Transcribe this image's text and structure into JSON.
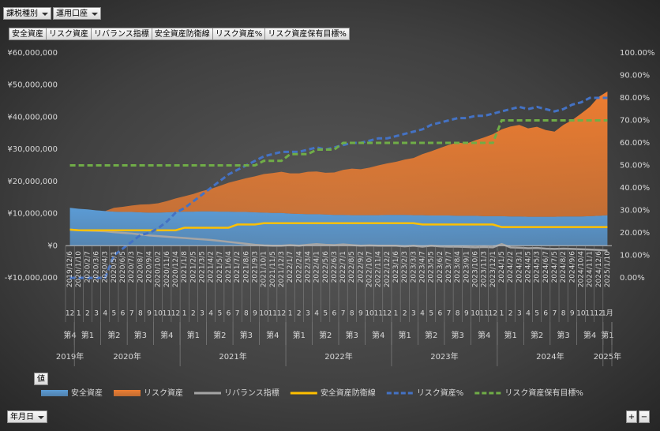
{
  "filters": [
    "課税種別",
    "運用口座"
  ],
  "values_label": "値",
  "axis_button": "年月日",
  "zoom_in": "+",
  "zoom_out": "−",
  "chart_data": {
    "type": "combo",
    "dates": [
      "2019/12/6",
      "2020/1/10",
      "2020/2/7",
      "2020/3/6",
      "2020/4/3",
      "2020/5/1",
      "2020/6/5",
      "2020/7/3",
      "2020/8/7",
      "2020/9/4",
      "2020/10/2",
      "2020/11/6",
      "2020/12/4",
      "2021/1/8",
      "2021/2/5",
      "2021/3/5",
      "2021/4/2",
      "2021/5/7",
      "2021/6/4",
      "2021/7/2",
      "2021/8/6",
      "2021/9/3",
      "2021/10/1",
      "2021/11/5",
      "2021/12/3",
      "2022/1/7",
      "2022/2/4",
      "2022/3/4",
      "2022/4/1",
      "2022/5/6",
      "2022/6/3",
      "2022/7/1",
      "2022/8/5",
      "2022/9/2",
      "2022/10/7",
      "2022/11/4",
      "2022/12/2",
      "2023/1/6",
      "2023/2/3",
      "2023/3/3",
      "2023/4/7",
      "2023/5/5",
      "2023/6/2",
      "2023/7/7",
      "2023/8/4",
      "2023/9/1",
      "2023/10/6",
      "2023/11/3",
      "2023/12/1",
      "2024/1/5",
      "2024/2/2",
      "2024/3/1",
      "2024/4/5",
      "2024/5/3",
      "2024/6/7",
      "2024/7/5",
      "2024/8/2",
      "2024/9/6",
      "2024/10/4",
      "2024/11/1",
      "2024/12/6",
      "2025/1/10"
    ],
    "categories": [
      "12",
      "1",
      "2",
      "3",
      "4",
      "5",
      "6",
      "7",
      "8",
      "9",
      "10",
      "11",
      "12",
      "1",
      "2",
      "3",
      "4",
      "5",
      "6",
      "7",
      "8",
      "9",
      "10",
      "11",
      "12",
      "1",
      "2",
      "3",
      "4",
      "5",
      "6",
      "7",
      "8",
      "9",
      "10",
      "11",
      "12",
      "1",
      "2",
      "3",
      "4",
      "5",
      "6",
      "7",
      "8",
      "9",
      "10",
      "11",
      "12",
      "1",
      "2",
      "3",
      "4",
      "5",
      "6",
      "7",
      "8",
      "9",
      "10",
      "11",
      "12",
      "1月"
    ],
    "quarters": [
      "第4",
      "第1",
      "第1",
      "第1",
      "第2",
      "第2",
      "第2",
      "第3",
      "第3",
      "第3",
      "第4",
      "第4",
      "第4",
      "第1",
      "第1",
      "第1",
      "第2",
      "第2",
      "第2",
      "第3",
      "第3",
      "第3",
      "第4",
      "第4",
      "第4",
      "第1",
      "第1",
      "第1",
      "第2",
      "第2",
      "第2",
      "第3",
      "第3",
      "第3",
      "第4",
      "第4",
      "第4",
      "第1",
      "第1",
      "第1",
      "第2",
      "第2",
      "第2",
      "第3",
      "第3",
      "第3",
      "第4",
      "第4",
      "第4",
      "第1",
      "第1",
      "第1",
      "第2",
      "第2",
      "第2",
      "第3",
      "第3",
      "第3",
      "第4",
      "第4",
      "第4",
      "第1"
    ],
    "years": [
      "2019年",
      "2020年",
      "2020年",
      "2020年",
      "2020年",
      "2020年",
      "2020年",
      "2020年",
      "2020年",
      "2020年",
      "2020年",
      "2020年",
      "2020年",
      "2021年",
      "2021年",
      "2021年",
      "2021年",
      "2021年",
      "2021年",
      "2021年",
      "2021年",
      "2021年",
      "2021年",
      "2021年",
      "2021年",
      "2022年",
      "2022年",
      "2022年",
      "2022年",
      "2022年",
      "2022年",
      "2022年",
      "2022年",
      "2022年",
      "2022年",
      "2022年",
      "2022年",
      "2023年",
      "2023年",
      "2023年",
      "2023年",
      "2023年",
      "2023年",
      "2023年",
      "2023年",
      "2023年",
      "2023年",
      "2023年",
      "2023年",
      "2024年",
      "2024年",
      "2024年",
      "2024年",
      "2024年",
      "2024年",
      "2024年",
      "2024年",
      "2024年",
      "2024年",
      "2024年",
      "2024年",
      "2025年"
    ],
    "series": [
      {
        "name": "安全資産",
        "type": "area",
        "color": "#5b9bd5",
        "values": [
          11800000,
          11500000,
          11300000,
          11000000,
          10800000,
          10600000,
          10500000,
          10500000,
          10400000,
          10300000,
          10300000,
          10400000,
          10500000,
          10600000,
          10600000,
          10700000,
          10700000,
          10600000,
          10600000,
          10500000,
          10500000,
          10400000,
          10300000,
          10200000,
          10200000,
          10000000,
          9900000,
          9800000,
          9800000,
          9700000,
          9600000,
          9600000,
          9500000,
          9500000,
          9500000,
          9500000,
          9600000,
          9600000,
          9600000,
          9500000,
          9500000,
          9400000,
          9400000,
          9400000,
          9300000,
          9300000,
          9300000,
          9200000,
          9200000,
          9200000,
          9100000,
          9100000,
          9000000,
          9000000,
          9000000,
          9000000,
          9100000,
          9100000,
          9100000,
          9200000,
          9300000,
          9500000
        ]
      },
      {
        "name": "リスク資産",
        "type": "area",
        "color": "#ed7d31",
        "values": [
          0,
          0,
          0,
          0,
          0,
          1200000,
          1600000,
          2000000,
          2400000,
          2600000,
          2900000,
          3500000,
          4200000,
          4800000,
          5500000,
          6300000,
          7000000,
          8000000,
          9000000,
          9800000,
          10500000,
          11200000,
          12000000,
          12400000,
          12800000,
          12500000,
          12600000,
          13200000,
          13300000,
          13000000,
          13200000,
          14000000,
          14500000,
          14300000,
          14800000,
          15500000,
          16000000,
          16500000,
          17200000,
          17800000,
          19000000,
          20000000,
          21000000,
          22000000,
          22800000,
          22500000,
          23500000,
          24500000,
          25500000,
          27000000,
          28000000,
          28500000,
          27500000,
          28000000,
          27000000,
          26500000,
          28500000,
          30000000,
          32000000,
          34000000,
          37000000,
          38500000
        ]
      },
      {
        "name": "リバランス指標",
        "type": "line",
        "color": "#a5a5a5",
        "values": [
          5000000,
          4800000,
          4700000,
          4600000,
          4500000,
          4200000,
          4000000,
          3800000,
          3500000,
          3200000,
          3000000,
          2800000,
          2600000,
          2400000,
          2200000,
          2000000,
          1800000,
          1500000,
          1200000,
          900000,
          600000,
          300000,
          100000,
          0,
          0,
          200000,
          0,
          300000,
          500000,
          300000,
          200000,
          400000,
          200000,
          0,
          100000,
          0,
          0,
          0,
          -200000,
          0,
          -300000,
          0,
          -200000,
          -300000,
          -300000,
          -400000,
          -500000,
          -400000,
          -500000,
          500000,
          -500000,
          -600000,
          -800000,
          -700000,
          -900000,
          -1000000,
          -900000,
          -1000000,
          -1100000,
          -1200000,
          -1300000,
          -1500000
        ]
      },
      {
        "name": "安全資産防衛線",
        "type": "line",
        "color": "#ffc000",
        "values": [
          5000000,
          4800000,
          4800000,
          4800000,
          4800000,
          4800000,
          4800000,
          4800000,
          4800000,
          4800000,
          4800000,
          4800000,
          4800000,
          5600000,
          5600000,
          5600000,
          5600000,
          5600000,
          5600000,
          6600000,
          6600000,
          6600000,
          7000000,
          7000000,
          7000000,
          7000000,
          7000000,
          7000000,
          7000000,
          7000000,
          7000000,
          7000000,
          7000000,
          7000000,
          7000000,
          7000000,
          7000000,
          7000000,
          7000000,
          7000000,
          6600000,
          6600000,
          6600000,
          6600000,
          6600000,
          6600000,
          6600000,
          6600000,
          6600000,
          5800000,
          5800000,
          5800000,
          5800000,
          5800000,
          5800000,
          5800000,
          5800000,
          5800000,
          5800000,
          5800000,
          5800000,
          5800000
        ]
      },
      {
        "name": "リスク資産%",
        "type": "line",
        "dashed": true,
        "axis": "y2",
        "color": "#4472c4",
        "values": [
          0,
          0,
          0,
          0,
          0,
          10,
          13,
          16,
          19,
          20,
          22,
          25,
          29,
          31,
          34,
          37,
          40,
          43,
          46,
          48,
          50,
          52,
          54,
          55,
          56,
          56,
          56,
          57,
          58,
          57,
          58,
          59,
          60,
          60,
          61,
          62,
          62,
          63,
          64,
          65,
          66,
          68,
          69,
          70,
          71,
          71,
          72,
          72,
          73,
          74,
          75,
          76,
          75,
          76,
          75,
          74,
          75,
          77,
          78,
          80,
          80,
          80
        ]
      },
      {
        "name": "リスク資産保有目標%",
        "type": "line",
        "dashed": true,
        "axis": "y2",
        "color": "#70ad47",
        "values": [
          50,
          50,
          50,
          50,
          50,
          50,
          50,
          50,
          50,
          50,
          50,
          50,
          50,
          50,
          50,
          50,
          50,
          50,
          50,
          50,
          50,
          50,
          52,
          52,
          52,
          55,
          55,
          55,
          57,
          57,
          57,
          60,
          60,
          60,
          60,
          60,
          60,
          60,
          60,
          60,
          60,
          60,
          60,
          60,
          60,
          60,
          60,
          60,
          60,
          70,
          70,
          70,
          70,
          70,
          70,
          70,
          70,
          70,
          70,
          70,
          70,
          70
        ]
      }
    ],
    "ylim": [
      -10000000,
      60000000
    ],
    "yticks": [
      {
        "value": -10000000,
        "label": "-¥10,000,000"
      },
      {
        "value": 0,
        "label": "¥0"
      },
      {
        "value": 10000000,
        "label": "¥10,000,000"
      },
      {
        "value": 20000000,
        "label": "¥20,000,000"
      },
      {
        "value": 30000000,
        "label": "¥30,000,000"
      },
      {
        "value": 40000000,
        "label": "¥40,000,000"
      },
      {
        "value": 50000000,
        "label": "¥50,000,000"
      },
      {
        "value": 60000000,
        "label": "¥60,000,000"
      }
    ],
    "y2lim": [
      0,
      100
    ],
    "y2ticks": [
      {
        "value": 0,
        "label": "0.00%"
      },
      {
        "value": 10,
        "label": "10.00%"
      },
      {
        "value": 20,
        "label": "20.00%"
      },
      {
        "value": 30,
        "label": "30.00%"
      },
      {
        "value": 40,
        "label": "40.00%"
      },
      {
        "value": 50,
        "label": "50.00%"
      },
      {
        "value": 60,
        "label": "60.00%"
      },
      {
        "value": 70,
        "label": "70.00%"
      },
      {
        "value": 80,
        "label": "80.00%"
      },
      {
        "value": 90,
        "label": "90.00%"
      },
      {
        "value": 100,
        "label": "100.00%"
      }
    ],
    "legend": "bottom"
  }
}
